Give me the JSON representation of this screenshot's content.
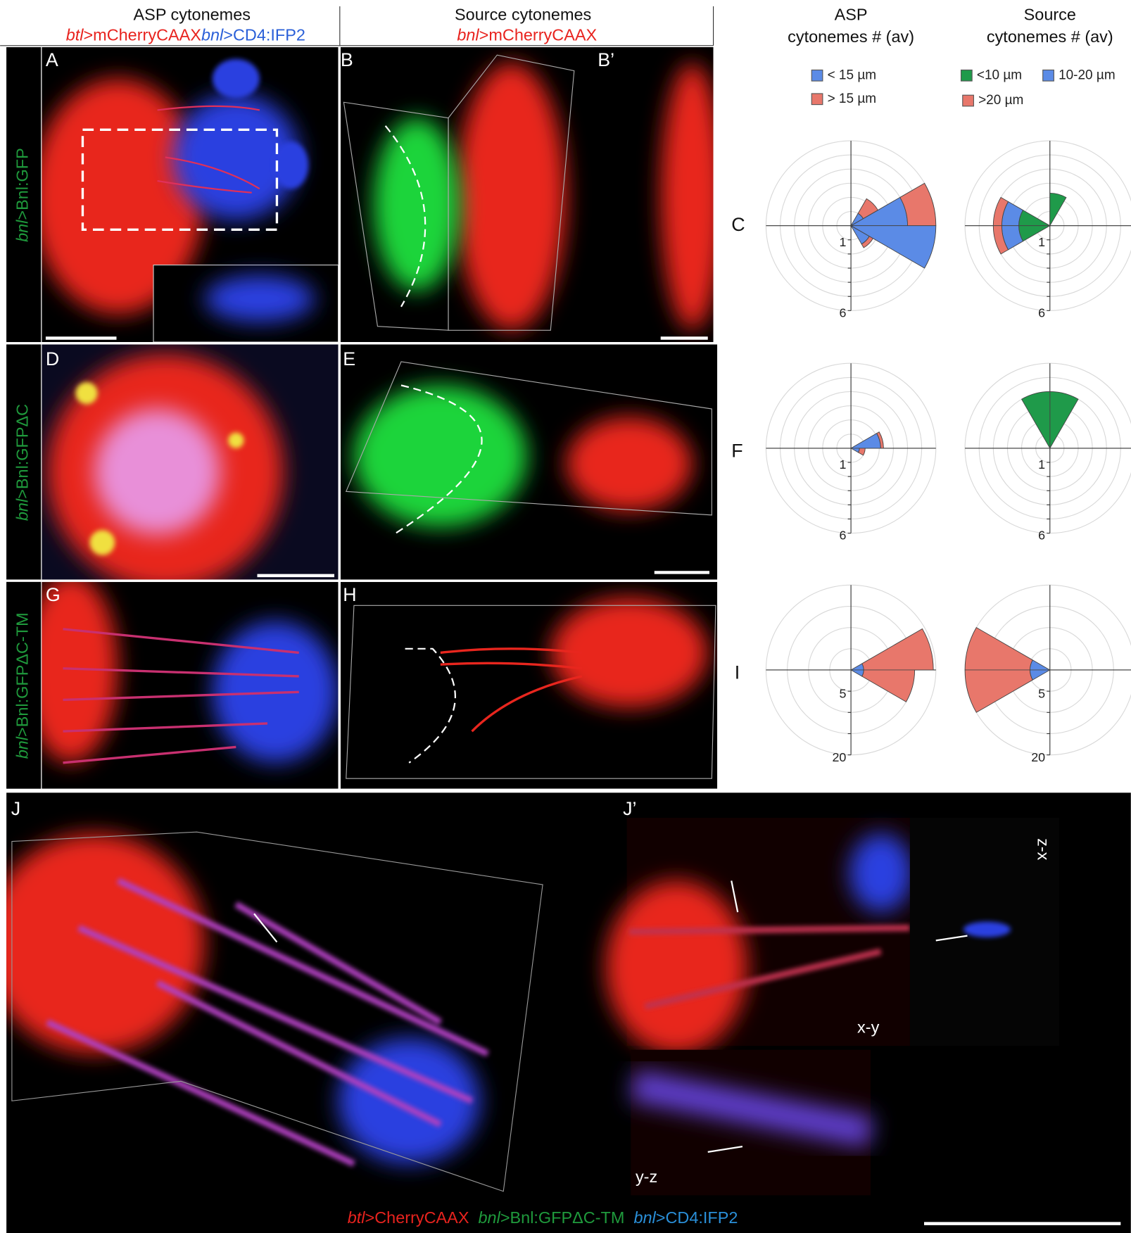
{
  "header": {
    "asp_title": "ASP cytonemes",
    "asp_genotype": [
      {
        "text": "btl",
        "italic": true,
        "color": "#e8231e"
      },
      {
        "text": ">mCherryCAAX",
        "italic": false,
        "color": "#e8231e"
      },
      {
        "text": "bnl",
        "italic": true,
        "color": "#2a5fd8"
      },
      {
        "text": ">CD4:IFP2",
        "italic": false,
        "color": "#2a5fd8"
      }
    ],
    "source_title": "Source cytonemes",
    "source_genotype": [
      {
        "text": "bnl",
        "italic": true,
        "color": "#e8231e"
      },
      {
        "text": ">mCherryCAAX",
        "italic": false,
        "color": "#e8231e"
      }
    ]
  },
  "row_labels": [
    [
      {
        "text": "bnl",
        "italic": true,
        "color": "#1f9a3c"
      },
      {
        "text": ">Bnl:GFP",
        "italic": false,
        "color": "#1f9a3c"
      }
    ],
    [
      {
        "text": "bnl",
        "italic": true,
        "color": "#1f9a3c"
      },
      {
        "text": ">Bnl:GFPΔC",
        "italic": false,
        "color": "#1f9a3c"
      }
    ],
    [
      {
        "text": "bnl",
        "italic": true,
        "color": "#1f9a3c"
      },
      {
        "text": ">Bnl:GFPΔC-TM",
        "italic": false,
        "color": "#1f9a3c"
      }
    ]
  ],
  "panel_labels": {
    "A": "A",
    "B": "B",
    "B2": "B’",
    "C": "C",
    "D": "D",
    "E": "E",
    "F": "F",
    "G": "G",
    "H": "H",
    "I": "I",
    "J": "J",
    "J2": "J’"
  },
  "view_labels": {
    "xy": "x-y",
    "zx": "z-x",
    "yz": "y-z"
  },
  "bottom_legend": [
    {
      "text": "btl",
      "italic": true,
      "color": "#e8231e"
    },
    {
      "text": ">CherryCAAX  ",
      "italic": false,
      "color": "#e8231e"
    },
    {
      "text": "bnl",
      "italic": true,
      "color": "#1f9a3c"
    },
    {
      "text": ">Bnl:GFPΔC-TM  ",
      "italic": false,
      "color": "#1f9a3c"
    },
    {
      "text": "bnl",
      "italic": true,
      "color": "#2a8fd8"
    },
    {
      "text": ">CD4:IFP2",
      "italic": false,
      "color": "#2a8fd8"
    }
  ],
  "chart_data": [
    {
      "type": "rose",
      "title": [
        "ASP",
        "cytonemes # (av)"
      ],
      "categories": [
        null,
        null,
        null,
        null,
        null,
        null,
        null,
        null,
        null,
        null,
        null,
        null
      ],
      "series": [
        {
          "name": "< 15 µm",
          "color": "#5b8be6",
          "values": [
            4,
            1,
            0,
            0,
            0,
            0,
            0,
            0,
            0,
            0,
            1.5,
            6
          ]
        },
        {
          "name": "> 15 µm",
          "color": "#e8776b",
          "values": [
            2,
            1.2,
            0,
            0,
            0,
            0,
            0,
            0,
            0,
            0,
            0.3,
            0
          ]
        }
      ],
      "rlim": [
        0,
        6
      ],
      "rticks": [
        1,
        {
          "value": 2,
          "label": null
        },
        {
          "value": 3,
          "label": null
        },
        {
          "value": 4,
          "label": null
        },
        {
          "value": 5,
          "label": null
        },
        6
      ]
    },
    {
      "type": "rose",
      "title": [
        "Source",
        "cytonemes # (av)"
      ],
      "categories": [
        null,
        null,
        null,
        null,
        null,
        null,
        null,
        null,
        null,
        null,
        null,
        null
      ],
      "series": [
        {
          "name": "<10 µm",
          "color": "#1f9a4a",
          "values": [
            0,
            0,
            2.3,
            0,
            0,
            2.2,
            2.2,
            0,
            0,
            0,
            0,
            0
          ]
        },
        {
          "name": "10-20 µm",
          "color": "#5b8be6",
          "values": [
            0,
            0,
            0,
            0,
            0,
            1.2,
            1.2,
            0,
            0,
            0,
            0,
            0
          ]
        },
        {
          "name": ">20 µm",
          "color": "#e8776b",
          "values": [
            0,
            0,
            0,
            0,
            0,
            0.6,
            0.6,
            0,
            0,
            0,
            0,
            0
          ]
        }
      ],
      "rlim": [
        0,
        6
      ],
      "rticks": [
        1,
        {
          "value": 2,
          "label": null
        },
        {
          "value": 3,
          "label": null
        },
        {
          "value": 4,
          "label": null
        },
        {
          "value": 5,
          "label": null
        },
        6
      ]
    },
    {
      "type": "rose",
      "categories": [
        null,
        null,
        null,
        null,
        null,
        null,
        null,
        null,
        null,
        null,
        null,
        null
      ],
      "series": [
        {
          "color": "#5b8be6",
          "values": [
            2.1,
            0,
            0,
            0,
            0,
            0,
            0,
            0,
            0,
            0,
            0,
            0.6
          ]
        },
        {
          "color": "#e8776b",
          "values": [
            0.2,
            0,
            0,
            0,
            0,
            0,
            0,
            0,
            0,
            0,
            0,
            0.4
          ]
        }
      ],
      "rlim": [
        0,
        6
      ],
      "rticks": [
        1,
        {
          "value": 2,
          "label": null
        },
        {
          "value": 3,
          "label": null
        },
        {
          "value": 4,
          "label": null
        },
        {
          "value": 5,
          "label": null
        },
        6
      ]
    },
    {
      "type": "rose",
      "categories": [
        null,
        null,
        null,
        null,
        null,
        null,
        null,
        null,
        null,
        null,
        null,
        null
      ],
      "series": [
        {
          "color": "#1f9a4a",
          "values": [
            0,
            0,
            4,
            4,
            0,
            0,
            0,
            0,
            0,
            0,
            0,
            0
          ]
        },
        {
          "color": "#5b8be6",
          "values": [
            0,
            0,
            0,
            0,
            0,
            0,
            0,
            0,
            0,
            0,
            0,
            0
          ]
        },
        {
          "color": "#e8776b",
          "values": [
            0,
            0,
            0,
            0,
            0,
            0,
            0,
            0,
            0,
            0,
            0,
            0
          ]
        }
      ],
      "rlim": [
        0,
        6
      ],
      "rticks": [
        1,
        {
          "value": 2,
          "label": null
        },
        {
          "value": 3,
          "label": null
        },
        {
          "value": 4,
          "label": null
        },
        {
          "value": 5,
          "label": null
        },
        6
      ]
    },
    {
      "type": "rose",
      "categories": [
        null,
        null,
        null,
        null,
        null,
        null,
        null,
        null,
        null,
        null,
        null,
        null
      ],
      "series": [
        {
          "color": "#5b8be6",
          "values": [
            3,
            0,
            0,
            0,
            0,
            0,
            0,
            0,
            0,
            0,
            0,
            3
          ]
        },
        {
          "color": "#e8776b",
          "values": [
            16.4,
            0,
            0,
            0,
            0,
            0,
            0,
            0,
            0,
            0,
            0,
            12
          ]
        }
      ],
      "rlim": [
        0,
        20
      ],
      "rticks": [
        5,
        {
          "value": 10,
          "label": null
        },
        {
          "value": 15,
          "label": null
        },
        20
      ]
    },
    {
      "type": "rose",
      "categories": [
        null,
        null,
        null,
        null,
        null,
        null,
        null,
        null,
        null,
        null,
        null,
        null
      ],
      "series": [
        {
          "color": "#1f9a4a",
          "values": [
            0,
            0,
            0,
            0,
            0,
            0,
            0,
            0,
            0,
            0,
            0,
            0
          ]
        },
        {
          "color": "#5b8be6",
          "values": [
            0,
            0,
            0,
            0,
            0,
            4.7,
            4.7,
            0,
            0,
            0,
            0,
            0
          ]
        },
        {
          "color": "#e8776b",
          "values": [
            0,
            0,
            0,
            0,
            0,
            15.3,
            15.3,
            0,
            0,
            0,
            0,
            0
          ]
        }
      ],
      "rlim": [
        0,
        20
      ],
      "rticks": [
        5,
        {
          "value": 10,
          "label": null
        },
        {
          "value": 15,
          "label": null
        },
        20
      ]
    }
  ]
}
